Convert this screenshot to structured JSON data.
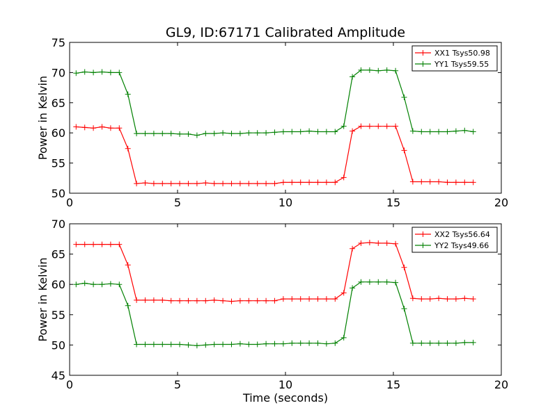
{
  "chart_data": [
    {
      "type": "line",
      "title": "GL9, ID:67171 Calibrated Amplitude",
      "xlabel": "",
      "ylabel": "Power in Kelvin",
      "xlim": [
        0,
        20
      ],
      "ylim": [
        50,
        75
      ],
      "xticks": [
        "0",
        "5",
        "10",
        "15",
        "20"
      ],
      "yticks": [
        "50",
        "55",
        "60",
        "65",
        "70",
        "75"
      ],
      "legend_position": "top-right",
      "x": [
        0.3,
        0.7,
        1.1,
        1.5,
        1.9,
        2.3,
        2.7,
        3.1,
        3.5,
        3.9,
        4.3,
        4.7,
        5.1,
        5.5,
        5.9,
        6.3,
        6.7,
        7.1,
        7.5,
        7.9,
        8.3,
        8.7,
        9.1,
        9.5,
        9.9,
        10.3,
        10.7,
        11.1,
        11.5,
        11.9,
        12.3,
        12.7,
        13.1,
        13.5,
        13.9,
        14.3,
        14.7,
        15.1,
        15.5,
        15.9,
        16.3,
        16.7,
        17.1,
        17.5,
        17.9,
        18.3,
        18.7
      ],
      "series": [
        {
          "name": "XX1 Tsys50.98",
          "color": "#ff0000",
          "values": [
            61.0,
            60.9,
            60.8,
            61.0,
            60.8,
            60.8,
            57.4,
            51.6,
            51.7,
            51.6,
            51.6,
            51.6,
            51.6,
            51.6,
            51.6,
            51.7,
            51.6,
            51.6,
            51.6,
            51.6,
            51.6,
            51.6,
            51.6,
            51.6,
            51.8,
            51.8,
            51.8,
            51.8,
            51.8,
            51.8,
            51.8,
            52.6,
            60.3,
            61.1,
            61.1,
            61.1,
            61.1,
            61.1,
            57.1,
            51.9,
            51.9,
            51.9,
            51.9,
            51.8,
            51.8,
            51.8,
            51.8
          ]
        },
        {
          "name": "YY1 Tsys59.55",
          "color": "#008000",
          "values": [
            69.9,
            70.1,
            70.0,
            70.1,
            70.0,
            70.0,
            66.4,
            59.9,
            59.9,
            59.9,
            59.9,
            59.9,
            59.8,
            59.8,
            59.6,
            59.9,
            59.9,
            60.0,
            59.9,
            59.9,
            60.0,
            60.0,
            60.0,
            60.1,
            60.2,
            60.2,
            60.2,
            60.3,
            60.2,
            60.2,
            60.2,
            61.1,
            69.3,
            70.4,
            70.4,
            70.3,
            70.4,
            70.3,
            65.9,
            60.3,
            60.2,
            60.2,
            60.2,
            60.2,
            60.3,
            60.4,
            60.2
          ]
        }
      ]
    },
    {
      "type": "line",
      "title": "",
      "xlabel": "Time (seconds)",
      "ylabel": "Power in Kelvin",
      "xlim": [
        0,
        20
      ],
      "ylim": [
        45,
        70
      ],
      "xticks": [
        "0",
        "5",
        "10",
        "15",
        "20"
      ],
      "yticks": [
        "45",
        "50",
        "55",
        "60",
        "65",
        "70"
      ],
      "legend_position": "top-right",
      "x": [
        0.3,
        0.7,
        1.1,
        1.5,
        1.9,
        2.3,
        2.7,
        3.1,
        3.5,
        3.9,
        4.3,
        4.7,
        5.1,
        5.5,
        5.9,
        6.3,
        6.7,
        7.1,
        7.5,
        7.9,
        8.3,
        8.7,
        9.1,
        9.5,
        9.9,
        10.3,
        10.7,
        11.1,
        11.5,
        11.9,
        12.3,
        12.7,
        13.1,
        13.5,
        13.9,
        14.3,
        14.7,
        15.1,
        15.5,
        15.9,
        16.3,
        16.7,
        17.1,
        17.5,
        17.9,
        18.3,
        18.7
      ],
      "series": [
        {
          "name": "XX2 Tsys56.64",
          "color": "#ff0000",
          "values": [
            66.6,
            66.6,
            66.6,
            66.6,
            66.6,
            66.6,
            63.2,
            57.4,
            57.4,
            57.4,
            57.4,
            57.3,
            57.3,
            57.3,
            57.3,
            57.3,
            57.4,
            57.3,
            57.2,
            57.3,
            57.3,
            57.3,
            57.3,
            57.3,
            57.6,
            57.6,
            57.6,
            57.6,
            57.6,
            57.6,
            57.6,
            58.6,
            65.9,
            66.8,
            66.9,
            66.8,
            66.8,
            66.7,
            62.8,
            57.7,
            57.6,
            57.6,
            57.7,
            57.6,
            57.6,
            57.7,
            57.6
          ]
        },
        {
          "name": "YY2 Tsys49.66",
          "color": "#008000",
          "values": [
            60.0,
            60.2,
            60.0,
            60.0,
            60.1,
            60.0,
            56.5,
            50.1,
            50.1,
            50.1,
            50.1,
            50.1,
            50.1,
            50.0,
            49.9,
            50.0,
            50.1,
            50.1,
            50.1,
            50.2,
            50.1,
            50.1,
            50.2,
            50.2,
            50.2,
            50.3,
            50.3,
            50.3,
            50.3,
            50.2,
            50.3,
            51.2,
            59.4,
            60.4,
            60.4,
            60.4,
            60.4,
            60.3,
            56.0,
            50.3,
            50.3,
            50.3,
            50.3,
            50.3,
            50.3,
            50.4,
            50.4
          ]
        }
      ]
    }
  ]
}
